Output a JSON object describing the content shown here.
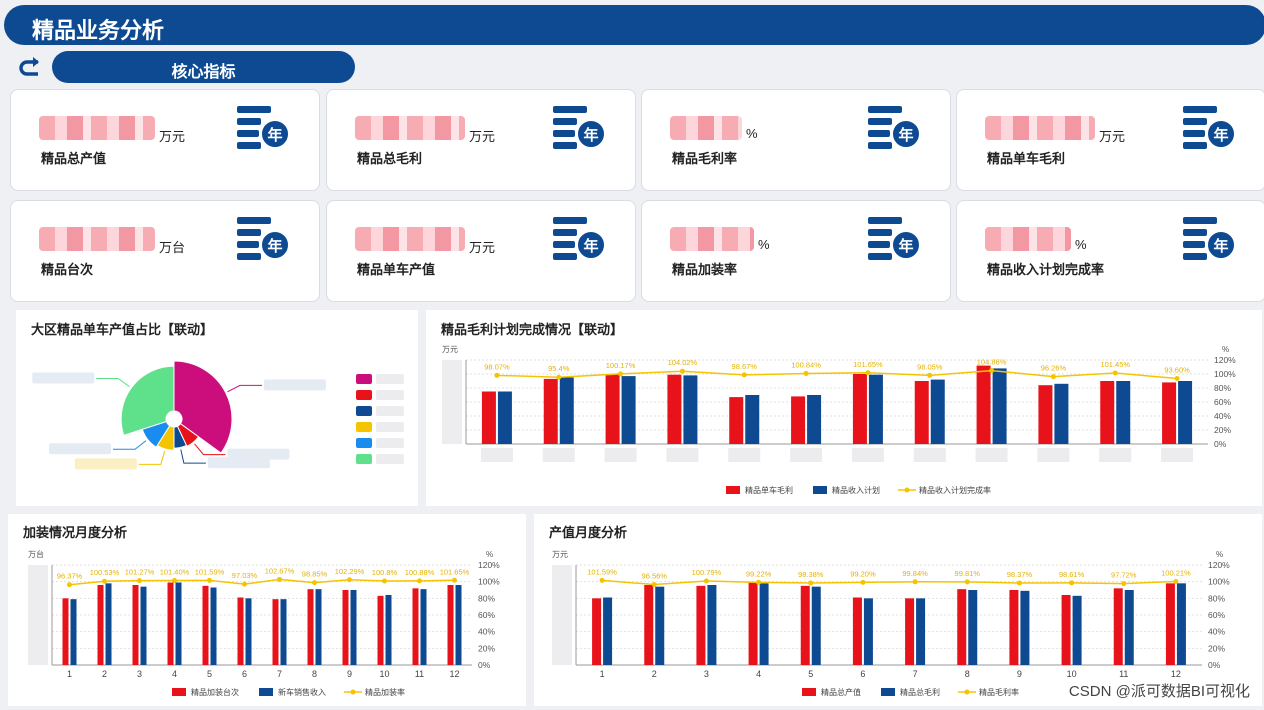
{
  "header": {
    "title": "精品业务分析"
  },
  "section": {
    "label": "核心指标"
  },
  "kpis": [
    {
      "label": "精品总产值",
      "unit": "万元"
    },
    {
      "label": "精品总毛利",
      "unit": "万元"
    },
    {
      "label": "精品毛利率",
      "unit": "%"
    },
    {
      "label": "精品单车毛利",
      "unit": "万元"
    },
    {
      "label": "精品台次",
      "unit": "万台"
    },
    {
      "label": "精品单车产值",
      "unit": "万元"
    },
    {
      "label": "精品加装率",
      "unit": "%"
    },
    {
      "label": "精品收入计划完成率",
      "unit": "%"
    }
  ],
  "year_icon_text": "年",
  "colors": {
    "primary": "#0d4a92",
    "red": "#e8131a",
    "blue": "#0d4a92",
    "yellow": "#f5c400",
    "lightblue": "#1a8cf0",
    "green": "#5fe08a",
    "magenta": "#cc0e7d"
  },
  "pie": {
    "title": "大区精品单车产值占比【联动】",
    "slices": [
      {
        "color": "#cc0e7d",
        "value": 35
      },
      {
        "color": "#e8131a",
        "value": 8
      },
      {
        "color": "#0d4a92",
        "value": 7
      },
      {
        "color": "#f5c400",
        "value": 9
      },
      {
        "color": "#1a8cf0",
        "value": 11
      },
      {
        "color": "#5fe08a",
        "value": 30
      }
    ]
  },
  "chart_data": [
    {
      "type": "bar",
      "title": "精品毛利计划完成情况【联动】",
      "ylabel": "万元",
      "y2label": "%",
      "y2ticks": [
        "120%",
        "100%",
        "80%",
        "60%",
        "40%",
        "20%",
        "0%"
      ],
      "ylim": [
        0,
        120
      ],
      "series": [
        {
          "name": "精品单车毛利",
          "color": "#e8131a",
          "values": [
            75,
            93,
            100,
            99,
            67,
            68,
            100,
            90,
            112,
            84,
            90,
            88
          ]
        },
        {
          "name": "精品收入计划",
          "color": "#0d4a92",
          "values": [
            75,
            95,
            97,
            98,
            70,
            70,
            99,
            92,
            108,
            86,
            90,
            90
          ]
        },
        {
          "name": "精品收入计划完成率",
          "color": "#f5c400",
          "values": [
            98.1,
            95.4,
            100.2,
            104.0,
            98.7,
            100.8,
            101.7,
            98.1,
            104.9,
            96.3,
            101.4,
            93.6
          ]
        }
      ],
      "labels": [
        "98.07%",
        "95.4%",
        "100.17%",
        "104.02%",
        "98.67%",
        "100.84%",
        "101.65%",
        "98.05%",
        "104.86%",
        "96.26%",
        "101.45%",
        "93.60%"
      ]
    },
    {
      "type": "bar",
      "title": "加装情况月度分析",
      "ylabel": "万台",
      "y2label": "%",
      "categories": [
        "1",
        "2",
        "3",
        "4",
        "5",
        "6",
        "7",
        "8",
        "9",
        "10",
        "11",
        "12"
      ],
      "y2ticks": [
        "120%",
        "100%",
        "80%",
        "60%",
        "40%",
        "20%",
        "0%"
      ],
      "ylim": [
        0,
        120
      ],
      "series": [
        {
          "name": "精品加装台次",
          "color": "#e8131a",
          "values": [
            80,
            96,
            96,
            99,
            95,
            81,
            79,
            91,
            90,
            83,
            92,
            96
          ]
        },
        {
          "name": "新车销售收入",
          "color": "#0d4a92",
          "values": [
            79,
            98,
            94,
            99,
            93,
            80,
            79,
            91,
            90,
            84,
            91,
            96
          ]
        },
        {
          "name": "精品加装率",
          "color": "#f5c400",
          "values": [
            96.37,
            100.53,
            101.27,
            101.4,
            101.59,
            97.03,
            102.67,
            98.85,
            102.29,
            100.8,
            100.88,
            101.65
          ]
        }
      ],
      "labels": [
        "96.37%",
        "100.53%",
        "101.27%",
        "101.40%",
        "101.59%",
        "97.03%",
        "102.67%",
        "98.85%",
        "102.29%",
        "100.8%",
        "100.88%",
        "101.65%"
      ]
    },
    {
      "type": "bar",
      "title": "产值月度分析",
      "ylabel": "万元",
      "y2label": "%",
      "categories": [
        "1",
        "2",
        "3",
        "4",
        "5",
        "6",
        "7",
        "8",
        "9",
        "10",
        "11",
        "12"
      ],
      "y2ticks": [
        "120%",
        "100%",
        "80%",
        "60%",
        "40%",
        "20%",
        "0%"
      ],
      "ylim": [
        0,
        120
      ],
      "series": [
        {
          "name": "精品总产值",
          "color": "#e8131a",
          "values": [
            80,
            96,
            95,
            99,
            95,
            81,
            80,
            91,
            90,
            84,
            92,
            98
          ]
        },
        {
          "name": "精品总毛利",
          "color": "#0d4a92",
          "values": [
            81,
            94,
            96,
            98,
            94,
            80,
            80,
            90,
            89,
            83,
            90,
            98
          ]
        },
        {
          "name": "精品毛利率",
          "color": "#f5c400",
          "values": [
            101.59,
            96.56,
            100.79,
            99.22,
            98.38,
            99.2,
            99.84,
            99.81,
            98.37,
            98.61,
            97.72,
            100.21
          ]
        }
      ],
      "labels": [
        "101.59%",
        "96.56%",
        "100.79%",
        "99.22%",
        "98.38%",
        "99.20%",
        "99.84%",
        "99.81%",
        "98.37%",
        "98.61%",
        "97.72%",
        "100.21%"
      ]
    }
  ],
  "watermark": "CSDN @派可数据BI可视化"
}
